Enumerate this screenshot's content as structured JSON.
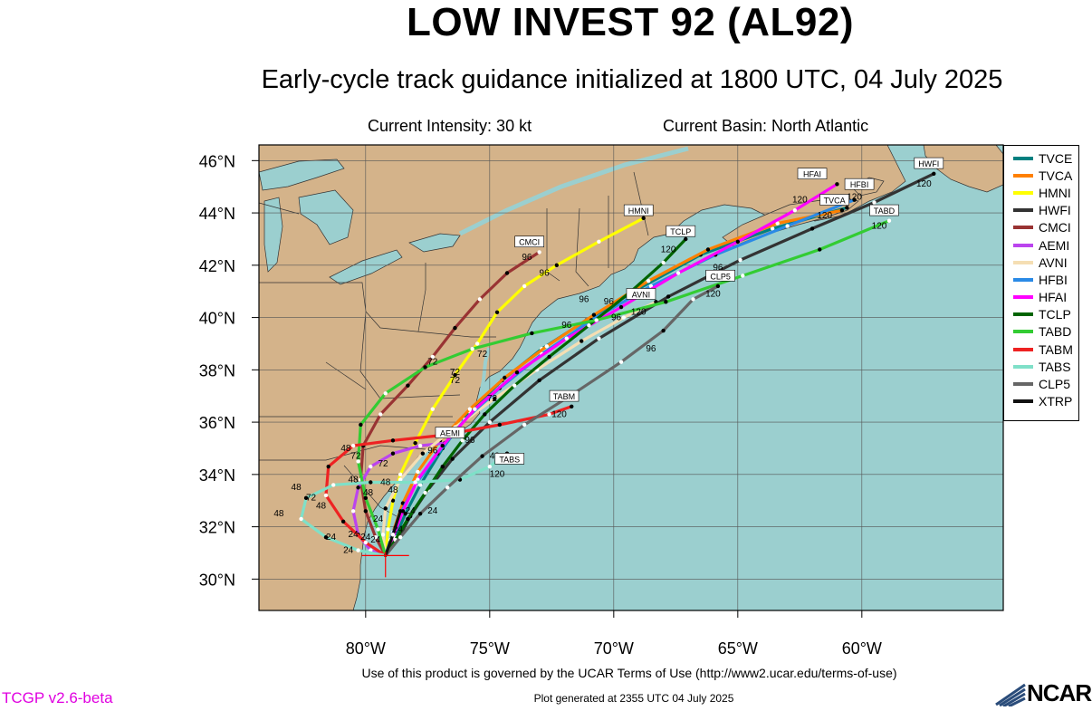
{
  "title": "LOW INVEST 92 (AL92)",
  "subtitle": "Early-cycle track guidance initialized at 1800 UTC, 04 July 2025",
  "current_intensity": "Current Intensity: 30 kt",
  "current_basin": "Current Basin: North Atlantic",
  "footer_terms": "Use of this product is governed by the UCAR Terms of Use (http://www2.ucar.edu/terms-of-use)",
  "version": "TCGP v2.6-beta",
  "generated": "Plot generated at 2355 UTC   04 July 2025",
  "logo": "NCAR",
  "colors": {
    "ocean": "#9bcfcf",
    "land": "#d4b38a",
    "grid": "#555555",
    "storm_marker": "#ff0000"
  },
  "map": {
    "lon_range": [
      -84.3,
      -54.3
    ],
    "lat_range": [
      28.8,
      46.6
    ],
    "lon_ticks": [
      "80°W",
      "75°W",
      "70°W",
      "65°W",
      "60°W"
    ],
    "lat_ticks": [
      "30°N",
      "32°N",
      "34°N",
      "36°N",
      "38°N",
      "40°N",
      "42°N",
      "44°N",
      "46°N"
    ],
    "current_position": {
      "lon": -79.2,
      "lat": 30.9
    }
  },
  "chart_data": {
    "type": "map",
    "series": [
      {
        "name": "TVCE",
        "color": "#008080",
        "points": [
          [
            -79.2,
            30.9
          ],
          [
            -78.8,
            31.6
          ],
          [
            -78.4,
            32.5
          ],
          [
            -77.8,
            33.6
          ],
          [
            -76.9,
            35.0
          ],
          [
            -75.8,
            36.4
          ],
          [
            -74.5,
            37.6
          ],
          [
            -72.9,
            38.8
          ],
          [
            -71.1,
            39.9
          ],
          [
            -69.0,
            41.1
          ],
          [
            -66.5,
            42.4
          ],
          [
            -63.6,
            43.4
          ],
          [
            -60.6,
            44.2
          ]
        ]
      },
      {
        "name": "TVCA",
        "color": "#ff8000",
        "points": [
          [
            -79.2,
            30.9
          ],
          [
            -78.9,
            31.8
          ],
          [
            -78.5,
            32.9
          ],
          [
            -77.9,
            34.1
          ],
          [
            -77.0,
            35.3
          ],
          [
            -75.8,
            36.5
          ],
          [
            -74.4,
            37.7
          ],
          [
            -72.7,
            38.9
          ],
          [
            -70.8,
            40.1
          ],
          [
            -68.6,
            41.4
          ],
          [
            -66.2,
            42.6
          ],
          [
            -63.4,
            43.6
          ],
          [
            -60.8,
            44.1
          ]
        ]
      },
      {
        "name": "HMNI",
        "color": "#ffff00",
        "points": [
          [
            -79.2,
            30.9
          ],
          [
            -79.1,
            31.9
          ],
          [
            -78.9,
            33.0
          ],
          [
            -78.6,
            34.0
          ],
          [
            -78.0,
            35.2
          ],
          [
            -77.3,
            36.5
          ],
          [
            -76.4,
            37.8
          ],
          [
            -75.5,
            39.0
          ],
          [
            -74.7,
            40.2
          ],
          [
            -73.6,
            41.2
          ],
          [
            -72.3,
            42.0
          ],
          [
            -70.6,
            42.9
          ],
          [
            -68.8,
            43.8
          ]
        ]
      },
      {
        "name": "HWFI",
        "color": "#333333",
        "points": [
          [
            -79.2,
            30.9
          ],
          [
            -78.7,
            31.5
          ],
          [
            -78.2,
            32.4
          ],
          [
            -77.5,
            33.4
          ],
          [
            -76.5,
            34.6
          ],
          [
            -75.0,
            36.0
          ],
          [
            -73.0,
            37.6
          ],
          [
            -70.6,
            39.2
          ],
          [
            -67.8,
            40.8
          ],
          [
            -64.9,
            42.2
          ],
          [
            -62.0,
            43.4
          ],
          [
            -59.5,
            44.4
          ],
          [
            -57.1,
            45.5
          ]
        ]
      },
      {
        "name": "CMCI",
        "color": "#993333",
        "points": [
          [
            -79.2,
            30.9
          ],
          [
            -79.6,
            31.6
          ],
          [
            -80.0,
            32.6
          ],
          [
            -80.2,
            33.8
          ],
          [
            -80.1,
            35.1
          ],
          [
            -79.4,
            36.3
          ],
          [
            -78.3,
            37.4
          ],
          [
            -77.3,
            38.5
          ],
          [
            -76.4,
            39.6
          ],
          [
            -75.4,
            40.7
          ],
          [
            -74.3,
            41.7
          ],
          [
            -73.0,
            42.5
          ]
        ]
      },
      {
        "name": "AEMI",
        "color": "#bb44ee",
        "points": [
          [
            -79.2,
            30.9
          ],
          [
            -79.8,
            31.1
          ],
          [
            -80.3,
            31.7
          ],
          [
            -80.5,
            32.6
          ],
          [
            -80.3,
            33.5
          ],
          [
            -79.8,
            34.3
          ],
          [
            -78.9,
            34.8
          ],
          [
            -77.8,
            35.1
          ],
          [
            -76.8,
            35.2
          ]
        ]
      },
      {
        "name": "AVNI",
        "color": "#f5deb3",
        "points": [
          [
            -79.2,
            30.9
          ],
          [
            -79.3,
            31.7
          ],
          [
            -79.2,
            32.7
          ],
          [
            -78.6,
            33.8
          ],
          [
            -77.7,
            34.8
          ],
          [
            -76.4,
            35.8
          ],
          [
            -74.8,
            36.9
          ],
          [
            -73.1,
            38.0
          ],
          [
            -71.3,
            39.1
          ],
          [
            -69.6,
            40.0
          ],
          [
            -68.3,
            40.6
          ]
        ]
      },
      {
        "name": "HFBI",
        "color": "#2a8ae6",
        "points": [
          [
            -79.2,
            30.9
          ],
          [
            -79.0,
            31.5
          ],
          [
            -78.6,
            32.5
          ],
          [
            -78.0,
            33.6
          ],
          [
            -77.1,
            34.8
          ],
          [
            -76.0,
            36.1
          ],
          [
            -74.6,
            37.3
          ],
          [
            -72.9,
            38.6
          ],
          [
            -70.9,
            39.9
          ],
          [
            -68.5,
            41.2
          ],
          [
            -65.9,
            42.4
          ],
          [
            -63.0,
            43.5
          ],
          [
            -60.3,
            44.5
          ]
        ]
      },
      {
        "name": "HFAI",
        "color": "#ff00ff",
        "points": [
          [
            -79.2,
            30.9
          ],
          [
            -78.9,
            31.6
          ],
          [
            -78.5,
            32.6
          ],
          [
            -77.9,
            33.8
          ],
          [
            -76.9,
            35.1
          ],
          [
            -75.6,
            36.5
          ],
          [
            -73.9,
            37.9
          ],
          [
            -71.9,
            39.2
          ],
          [
            -69.7,
            40.4
          ],
          [
            -67.4,
            41.7
          ],
          [
            -65.0,
            42.9
          ],
          [
            -62.7,
            44.1
          ],
          [
            -61.0,
            45.1
          ]
        ]
      },
      {
        "name": "TCLP",
        "color": "#006400",
        "points": [
          [
            -79.2,
            30.9
          ],
          [
            -78.8,
            31.5
          ],
          [
            -78.3,
            32.3
          ],
          [
            -77.6,
            33.3
          ],
          [
            -76.9,
            34.3
          ],
          [
            -76.1,
            35.3
          ],
          [
            -75.2,
            36.3
          ],
          [
            -74.0,
            37.4
          ],
          [
            -72.6,
            38.5
          ],
          [
            -71.0,
            39.7
          ],
          [
            -69.3,
            41.0
          ],
          [
            -68.0,
            42.1
          ],
          [
            -67.1,
            43.0
          ]
        ]
      },
      {
        "name": "TABD",
        "color": "#33cc33",
        "points": [
          [
            -79.2,
            30.9
          ],
          [
            -79.5,
            31.9
          ],
          [
            -80.0,
            33.1
          ],
          [
            -80.3,
            34.5
          ],
          [
            -80.2,
            35.9
          ],
          [
            -79.2,
            37.1
          ],
          [
            -77.6,
            38.1
          ],
          [
            -75.7,
            38.8
          ],
          [
            -73.3,
            39.4
          ],
          [
            -70.7,
            39.9
          ],
          [
            -67.9,
            40.6
          ],
          [
            -64.8,
            41.6
          ],
          [
            -61.7,
            42.6
          ],
          [
            -58.9,
            43.7
          ]
        ]
      },
      {
        "name": "TABM",
        "color": "#ee2222",
        "points": [
          [
            -79.2,
            30.9
          ],
          [
            -80.0,
            31.4
          ],
          [
            -80.9,
            32.2
          ],
          [
            -81.6,
            33.2
          ],
          [
            -81.5,
            34.3
          ],
          [
            -80.5,
            35.1
          ],
          [
            -78.9,
            35.3
          ],
          [
            -76.9,
            35.5
          ],
          [
            -74.6,
            35.9
          ],
          [
            -72.6,
            36.3
          ],
          [
            -71.7,
            36.6
          ]
        ]
      },
      {
        "name": "TABS",
        "color": "#7fe0c8",
        "points": [
          [
            -79.2,
            30.9
          ],
          [
            -80.3,
            31.1
          ],
          [
            -81.6,
            31.6
          ],
          [
            -82.6,
            32.3
          ],
          [
            -82.4,
            33.1
          ],
          [
            -81.3,
            33.6
          ],
          [
            -79.8,
            33.7
          ],
          [
            -78.0,
            33.7
          ],
          [
            -76.2,
            33.8
          ],
          [
            -75.0,
            34.3
          ],
          [
            -74.3,
            34.8
          ]
        ]
      },
      {
        "name": "CLP5",
        "color": "#666666",
        "points": [
          [
            -79.2,
            30.9
          ],
          [
            -78.6,
            31.6
          ],
          [
            -77.8,
            32.5
          ],
          [
            -76.7,
            33.5
          ],
          [
            -75.3,
            34.7
          ],
          [
            -73.6,
            35.9
          ],
          [
            -71.6,
            37.1
          ],
          [
            -69.7,
            38.3
          ],
          [
            -68.0,
            39.5
          ],
          [
            -66.8,
            40.7
          ],
          [
            -65.8,
            41.2
          ]
        ]
      },
      {
        "name": "XTRP",
        "color": "#111111",
        "points": [
          [
            -79.2,
            30.9
          ],
          [
            -78.9,
            31.7
          ],
          [
            -78.6,
            32.6
          ]
        ]
      }
    ],
    "box_labels": [
      {
        "text": "HWFI",
        "lon": -57.3,
        "lat": 45.8
      },
      {
        "text": "HFAI",
        "lon": -62.0,
        "lat": 45.4
      },
      {
        "text": "HFBI",
        "lon": -60.1,
        "lat": 45.0
      },
      {
        "text": "TVCA",
        "lon": -61.1,
        "lat": 44.4
      },
      {
        "text": "TABD",
        "lon": -59.1,
        "lat": 44.0
      },
      {
        "text": "HMNI",
        "lon": -69.0,
        "lat": 44.0
      },
      {
        "text": "TCLP",
        "lon": -67.3,
        "lat": 43.2
      },
      {
        "text": "CMCI",
        "lon": -73.4,
        "lat": 42.8
      },
      {
        "text": "CLP5",
        "lon": -65.7,
        "lat": 41.5
      },
      {
        "text": "AVNI",
        "lon": -68.9,
        "lat": 40.8
      },
      {
        "text": "TABM",
        "lon": -72.0,
        "lat": 36.9
      },
      {
        "text": "AEMI",
        "lon": -76.6,
        "lat": 35.5
      },
      {
        "text": "TABS",
        "lon": -74.2,
        "lat": 34.5
      }
    ],
    "hour_labels": [
      {
        "text": "120",
        "lon": -57.5,
        "lat": 45.0
      },
      {
        "text": "120",
        "lon": -62.5,
        "lat": 44.4
      },
      {
        "text": "120",
        "lon": -61.5,
        "lat": 43.8
      },
      {
        "text": "120",
        "lon": -59.3,
        "lat": 43.4
      },
      {
        "text": "120",
        "lon": -60.3,
        "lat": 44.5
      },
      {
        "text": "120",
        "lon": -67.8,
        "lat": 42.5
      },
      {
        "text": "120",
        "lon": -66.0,
        "lat": 40.8
      },
      {
        "text": "120",
        "lon": -69.0,
        "lat": 40.1
      },
      {
        "text": "120",
        "lon": -72.2,
        "lat": 36.2
      },
      {
        "text": "120",
        "lon": -74.7,
        "lat": 33.9
      },
      {
        "text": "96",
        "lon": -73.5,
        "lat": 42.2
      },
      {
        "text": "96",
        "lon": -72.8,
        "lat": 41.6
      },
      {
        "text": "96",
        "lon": -70.2,
        "lat": 40.5
      },
      {
        "text": "96",
        "lon": -71.2,
        "lat": 40.6
      },
      {
        "text": "96",
        "lon": -69.9,
        "lat": 39.9
      },
      {
        "text": "96",
        "lon": -65.8,
        "lat": 41.8
      },
      {
        "text": "96",
        "lon": -71.9,
        "lat": 39.6
      },
      {
        "text": "96",
        "lon": -68.5,
        "lat": 38.7
      },
      {
        "text": "96",
        "lon": -75.8,
        "lat": 35.2
      },
      {
        "text": "96",
        "lon": -77.3,
        "lat": 34.8
      },
      {
        "text": "72",
        "lon": -77.3,
        "lat": 38.2
      },
      {
        "text": "72",
        "lon": -76.4,
        "lat": 37.8
      },
      {
        "text": "72",
        "lon": -75.3,
        "lat": 38.5
      },
      {
        "text": "72",
        "lon": -76.4,
        "lat": 37.5
      },
      {
        "text": "72",
        "lon": -74.9,
        "lat": 36.8
      },
      {
        "text": "72",
        "lon": -80.4,
        "lat": 34.6
      },
      {
        "text": "72",
        "lon": -79.3,
        "lat": 34.3
      },
      {
        "text": "72",
        "lon": -82.2,
        "lat": 33.0
      },
      {
        "text": "48",
        "lon": -80.8,
        "lat": 34.9
      },
      {
        "text": "48",
        "lon": -80.5,
        "lat": 33.7
      },
      {
        "text": "48",
        "lon": -79.2,
        "lat": 33.6
      },
      {
        "text": "48",
        "lon": -78.9,
        "lat": 33.3
      },
      {
        "text": "48",
        "lon": -79.9,
        "lat": 33.2
      },
      {
        "text": "48",
        "lon": -82.8,
        "lat": 33.4
      },
      {
        "text": "48",
        "lon": -81.8,
        "lat": 32.7
      },
      {
        "text": "48",
        "lon": -83.5,
        "lat": 32.4
      },
      {
        "text": "48",
        "lon": -74.8,
        "lat": 34.6
      },
      {
        "text": "24",
        "lon": -79.5,
        "lat": 32.2
      },
      {
        "text": "24",
        "lon": -80.5,
        "lat": 31.6
      },
      {
        "text": "24",
        "lon": -81.4,
        "lat": 31.5
      },
      {
        "text": "24",
        "lon": -80.0,
        "lat": 31.5
      },
      {
        "text": "24",
        "lon": -79.6,
        "lat": 31.4
      },
      {
        "text": "24",
        "lon": -80.7,
        "lat": 31.0
      },
      {
        "text": "24",
        "lon": -78.7,
        "lat": 31.8
      },
      {
        "text": "24",
        "lon": -77.3,
        "lat": 32.5
      },
      {
        "text": "24",
        "lon": -78.2,
        "lat": 32.5
      }
    ]
  }
}
